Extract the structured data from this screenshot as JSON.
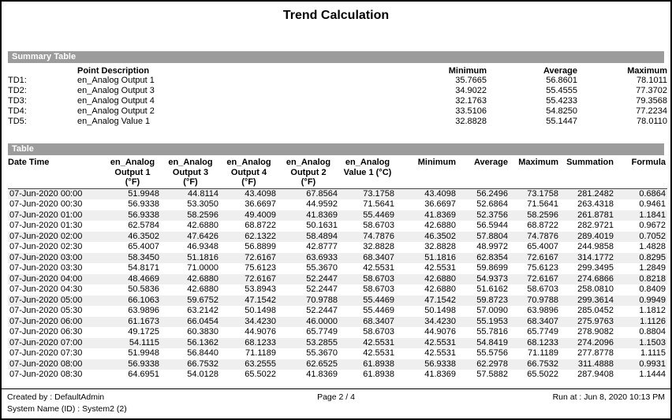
{
  "title": "Trend Calculation",
  "colors": {
    "section_bar_bg": "#9c9c9c",
    "section_bar_text": "#ffffff",
    "row_stripe": "#efefef",
    "page_border": "#000000"
  },
  "summary": {
    "section_label": "Summary Table",
    "headers": {
      "point_description": "Point Description",
      "minimum": "Minimum",
      "average": "Average",
      "maximum": "Maximum"
    },
    "rows": [
      {
        "id": "TD1:",
        "description": "en_Analog Output 1",
        "minimum": "35.7665",
        "average": "56.8601",
        "maximum": "78.1011"
      },
      {
        "id": "TD2:",
        "description": "en_Analog Output 3",
        "minimum": "34.9022",
        "average": "55.4555",
        "maximum": "77.3702"
      },
      {
        "id": "TD3:",
        "description": "en_Analog Output 4",
        "minimum": "32.1763",
        "average": "55.4233",
        "maximum": "79.3568"
      },
      {
        "id": "TD4:",
        "description": "en_Analog Output 2",
        "minimum": "33.5106",
        "average": "54.8250",
        "maximum": "77.2234"
      },
      {
        "id": "TD5:",
        "description": "en_Analog Value 1",
        "minimum": "32.8828",
        "average": "55.1447",
        "maximum": "78.0110"
      }
    ]
  },
  "table": {
    "section_label": "Table",
    "headers": [
      [
        "Date Time"
      ],
      [
        "en_Analog",
        "Output 1",
        "(°F)"
      ],
      [
        "en_Analog",
        "Output 3",
        "(°F)"
      ],
      [
        "en_Analog",
        "Output 4",
        "(°F)"
      ],
      [
        "en_Analog",
        "Output 2",
        "(°F)"
      ],
      [
        "en_Analog",
        "Value 1 (°C)"
      ],
      [
        "Minimum"
      ],
      [
        "Average"
      ],
      [
        "Maximum"
      ],
      [
        "Summation"
      ],
      [
        "Formula"
      ]
    ],
    "rows": [
      [
        "07-Jun-2020 00:00",
        "51.9948",
        "44.8114",
        "43.4098",
        "67.8564",
        "73.1758",
        "43.4098",
        "56.2496",
        "73.1758",
        "281.2482",
        "0.6864"
      ],
      [
        "07-Jun-2020 00:30",
        "56.9338",
        "53.3050",
        "36.6697",
        "44.9592",
        "71.5641",
        "36.6697",
        "52.6864",
        "71.5641",
        "263.4318",
        "0.9461"
      ],
      [
        "07-Jun-2020 01:00",
        "56.9338",
        "58.2596",
        "49.4009",
        "41.8369",
        "55.4469",
        "41.8369",
        "52.3756",
        "58.2596",
        "261.8781",
        "1.1841"
      ],
      [
        "07-Jun-2020 01:30",
        "62.5784",
        "42.6880",
        "68.8722",
        "50.1631",
        "58.6703",
        "42.6880",
        "56.5944",
        "68.8722",
        "282.9721",
        "0.9672"
      ],
      [
        "07-Jun-2020 02:00",
        "46.3502",
        "47.6426",
        "62.1322",
        "58.4894",
        "74.7876",
        "46.3502",
        "57.8804",
        "74.7876",
        "289.4019",
        "0.7052"
      ],
      [
        "07-Jun-2020 02:30",
        "65.4007",
        "46.9348",
        "56.8899",
        "42.8777",
        "32.8828",
        "32.8828",
        "48.9972",
        "65.4007",
        "244.9858",
        "1.4828"
      ],
      [
        "07-Jun-2020 03:00",
        "58.3450",
        "51.1816",
        "72.6167",
        "63.6933",
        "68.3407",
        "51.1816",
        "62.8354",
        "72.6167",
        "314.1772",
        "0.8295"
      ],
      [
        "07-Jun-2020 03:30",
        "54.8171",
        "71.0000",
        "75.6123",
        "55.3670",
        "42.5531",
        "42.5531",
        "59.8699",
        "75.6123",
        "299.3495",
        "1.2849"
      ],
      [
        "07-Jun-2020 04:00",
        "48.4669",
        "42.6880",
        "72.6167",
        "52.2447",
        "58.6703",
        "42.6880",
        "54.9373",
        "72.6167",
        "274.6866",
        "0.8218"
      ],
      [
        "07-Jun-2020 04:30",
        "50.5836",
        "42.6880",
        "53.8943",
        "52.2447",
        "58.6703",
        "42.6880",
        "51.6162",
        "58.6703",
        "258.0810",
        "0.8409"
      ],
      [
        "07-Jun-2020 05:00",
        "66.1063",
        "59.6752",
        "47.1542",
        "70.9788",
        "55.4469",
        "47.1542",
        "59.8723",
        "70.9788",
        "299.3614",
        "0.9949"
      ],
      [
        "07-Jun-2020 05:30",
        "63.9896",
        "63.2142",
        "50.1498",
        "52.2447",
        "55.4469",
        "50.1498",
        "57.0090",
        "63.9896",
        "285.0452",
        "1.1812"
      ],
      [
        "07-Jun-2020 06:00",
        "61.1673",
        "66.0454",
        "34.4230",
        "46.0000",
        "68.3407",
        "34.4230",
        "55.1953",
        "68.3407",
        "275.9763",
        "1.1126"
      ],
      [
        "07-Jun-2020 06:30",
        "49.1725",
        "60.3830",
        "44.9076",
        "65.7749",
        "58.6703",
        "44.9076",
        "55.7816",
        "65.7749",
        "278.9082",
        "0.8804"
      ],
      [
        "07-Jun-2020 07:00",
        "54.1115",
        "56.1362",
        "68.1233",
        "53.2855",
        "42.5531",
        "42.5531",
        "54.8419",
        "68.1233",
        "274.2096",
        "1.1503"
      ],
      [
        "07-Jun-2020 07:30",
        "51.9948",
        "56.8440",
        "71.1189",
        "55.3670",
        "42.5531",
        "42.5531",
        "55.5756",
        "71.1189",
        "277.8778",
        "1.1115"
      ],
      [
        "07-Jun-2020 08:00",
        "56.9338",
        "66.7532",
        "63.2555",
        "62.6525",
        "61.8938",
        "56.9338",
        "62.2978",
        "66.7532",
        "311.4888",
        "0.9931"
      ],
      [
        "07-Jun-2020 08:30",
        "64.6951",
        "54.0128",
        "65.5022",
        "41.8369",
        "61.8938",
        "41.8369",
        "57.5882",
        "65.5022",
        "287.9408",
        "1.1444"
      ]
    ]
  },
  "footer": {
    "created_by": "Created by : DefaultAdmin",
    "system_name": "System Name (ID) : System2 (2)",
    "page": "Page  2 / 4",
    "run_at": "Run at : Jun 8, 2020 10:13 PM"
  }
}
